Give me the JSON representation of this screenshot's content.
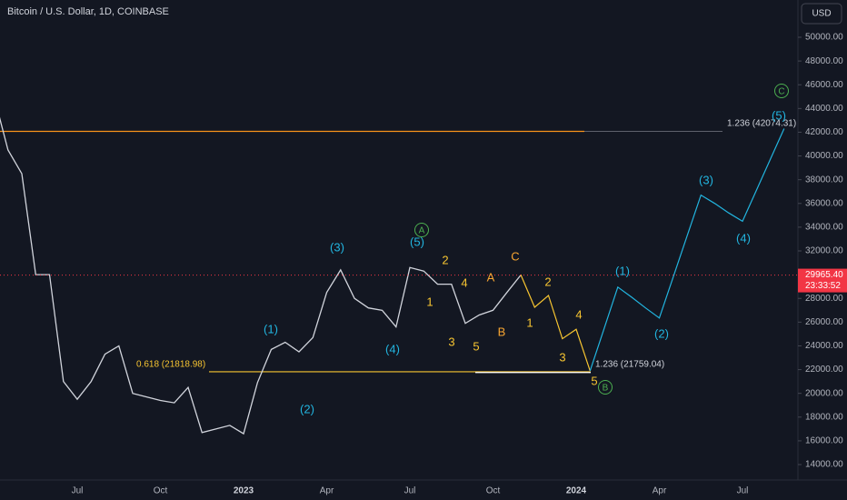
{
  "chart_data": {
    "type": "line",
    "title": "Bitcoin / U.S. Dollar, 1D, COINBASE",
    "currency": "USD",
    "categories": [
      null,
      null,
      null,
      null,
      null,
      null,
      "Jul",
      null,
      null,
      null,
      null,
      null,
      "Oct",
      null,
      null,
      null,
      null,
      null,
      "2023",
      null,
      null,
      null,
      null,
      null,
      "Apr",
      null,
      null,
      null,
      null,
      null,
      "Jul",
      null,
      null,
      null,
      null,
      null,
      "Oct",
      null,
      null,
      null,
      null,
      null,
      "2024",
      null,
      null,
      null,
      null,
      null,
      "Apr",
      null,
      null,
      null,
      null,
      null,
      "Jul",
      null,
      null,
      null
    ],
    "series": [
      {
        "color": "#d1d4dc",
        "values": [
          45000,
          40500,
          38500,
          30000,
          30000,
          21000,
          19500,
          21000,
          23300,
          24000,
          20000,
          19700,
          19400,
          19200,
          20500,
          16700,
          17000,
          17300,
          16600,
          20900,
          23700,
          24300,
          23500,
          24700,
          28500,
          30400,
          28000,
          27200,
          27000,
          25600,
          30600,
          30300,
          29200,
          29200,
          25900,
          26600,
          27000,
          28500,
          29965,
          null,
          null,
          null,
          null,
          null,
          null,
          null,
          null,
          null,
          null,
          null,
          null,
          null,
          null,
          null,
          null,
          null,
          null,
          null
        ]
      },
      {
        "color": "#f7c531",
        "values": [
          null,
          null,
          null,
          null,
          null,
          null,
          null,
          null,
          null,
          null,
          null,
          null,
          null,
          null,
          null,
          null,
          null,
          null,
          null,
          null,
          null,
          null,
          null,
          null,
          null,
          null,
          null,
          null,
          null,
          null,
          null,
          null,
          null,
          null,
          null,
          null,
          null,
          null,
          30000,
          27250,
          28250,
          24600,
          25400,
          21900,
          null,
          null,
          null,
          null,
          null,
          null,
          null,
          null,
          null,
          null,
          null,
          null,
          null,
          null
        ]
      },
      {
        "color": "#22b5e0",
        "values": [
          null,
          null,
          null,
          null,
          null,
          null,
          null,
          null,
          null,
          null,
          null,
          null,
          null,
          null,
          null,
          null,
          null,
          null,
          null,
          null,
          null,
          null,
          null,
          null,
          null,
          null,
          null,
          null,
          null,
          null,
          null,
          null,
          null,
          null,
          null,
          null,
          null,
          null,
          null,
          null,
          null,
          null,
          null,
          21900,
          25400,
          28950,
          28100,
          27200,
          26350,
          29800,
          33250,
          36700,
          36000,
          35200,
          34500,
          37100,
          39700,
          42300
        ]
      }
    ],
    "ylim": [
      12700,
      53140
    ],
    "yticks": [
      {
        "value": 14000,
        "label": "14000.00"
      },
      {
        "value": 16000,
        "label": "16000.00"
      },
      {
        "value": 18000,
        "label": "18000.00"
      },
      {
        "value": 20000,
        "label": "20000.00"
      },
      {
        "value": 22000,
        "label": "22000.00"
      },
      {
        "value": 24000,
        "label": "24000.00"
      },
      {
        "value": 26000,
        "label": "26000.00"
      },
      {
        "value": 28000,
        "label": "28000.00"
      },
      {
        "value": 30000,
        "label": "30000.00"
      },
      {
        "value": 32000,
        "label": "32000.00"
      },
      {
        "value": 34000,
        "label": "34000.00"
      },
      {
        "value": 36000,
        "label": "36000.00"
      },
      {
        "value": 38000,
        "label": "38000.00"
      },
      {
        "value": 40000,
        "label": "40000.00"
      },
      {
        "value": 42000,
        "label": "42000.00"
      },
      {
        "value": 44000,
        "label": "44000.00"
      },
      {
        "value": 46000,
        "label": "46000.00"
      },
      {
        "value": 48000,
        "label": "48000.00"
      },
      {
        "value": 50000,
        "label": "50000.00"
      }
    ],
    "last_price": {
      "value": 29965.4,
      "label": "29965.40",
      "countdown": "23:33:52",
      "color": "#f23645"
    },
    "levels": [
      {
        "value": 42074.31,
        "label": "1.236 (42074.31)",
        "color": "#f7931a"
      },
      {
        "value": 21818.98,
        "label": "0.618 (21818.98)",
        "color": "#f7c531"
      },
      {
        "value": 21759.04,
        "label": "1.236 (21759.04)",
        "color": "#ffffff"
      }
    ],
    "wave_labels": [
      {
        "text": "(1)",
        "color": "#22b5e0"
      },
      {
        "text": "(2)",
        "color": "#22b5e0"
      },
      {
        "text": "(3)",
        "color": "#22b5e0"
      },
      {
        "text": "(4)",
        "color": "#22b5e0"
      },
      {
        "text": "(5)",
        "color": "#22b5e0"
      },
      {
        "text": "A",
        "color": "#4caf50",
        "circled": true
      },
      {
        "text": "1",
        "color": "#f7c531"
      },
      {
        "text": "2",
        "color": "#f7c531"
      },
      {
        "text": "3",
        "color": "#f7c531"
      },
      {
        "text": "4",
        "color": "#f7c531"
      },
      {
        "text": "5",
        "color": "#f7c531"
      },
      {
        "text": "A",
        "color": "#f7a531"
      },
      {
        "text": "B",
        "color": "#f7a531"
      },
      {
        "text": "C",
        "color": "#f7a531"
      },
      {
        "text": "1",
        "color": "#f7c531"
      },
      {
        "text": "2",
        "color": "#f7c531"
      },
      {
        "text": "3",
        "color": "#f7c531"
      },
      {
        "text": "4",
        "color": "#f7c531"
      },
      {
        "text": "5",
        "color": "#f7c531"
      },
      {
        "text": "B",
        "color": "#4caf50",
        "circled": true
      },
      {
        "text": "(1)",
        "color": "#22b5e0"
      },
      {
        "text": "(2)",
        "color": "#22b5e0"
      },
      {
        "text": "(3)",
        "color": "#22b5e0"
      },
      {
        "text": "(4)",
        "color": "#22b5e0"
      },
      {
        "text": "(5)",
        "color": "#22b5e0"
      },
      {
        "text": "C",
        "color": "#4caf50",
        "circled": true
      }
    ]
  }
}
